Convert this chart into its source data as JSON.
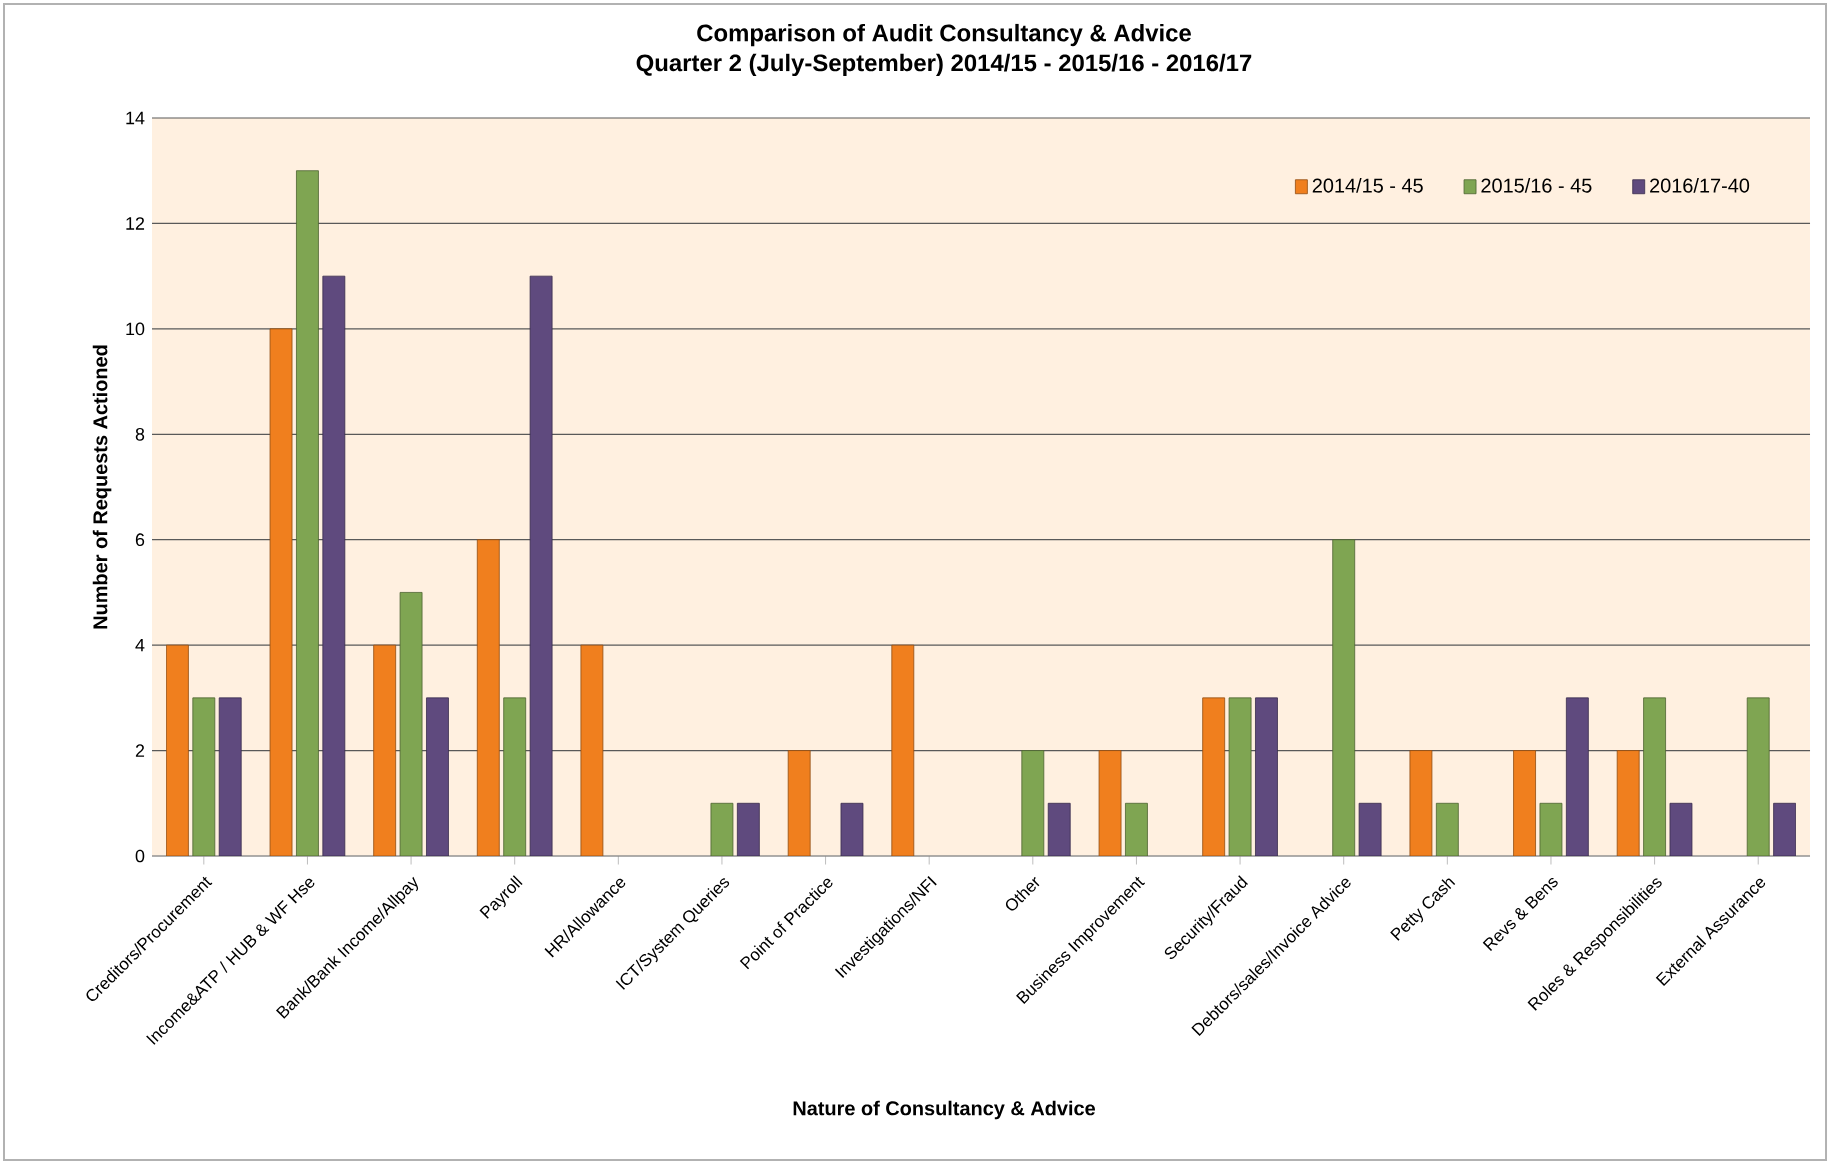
{
  "chart_data": {
    "type": "bar",
    "title": "Comparison of Audit Consultancy & Advice",
    "subtitle": "Quarter 2 (July-September) 2014/15 - 2015/16 - 2016/17",
    "xlabel": "Nature of Consultancy & Advice",
    "ylabel": "Number of Requests Actioned",
    "categories": [
      "Creditors/Procurement",
      "Income&ATP / HUB & WF Hse",
      "Bank/Bank Income/Allpay",
      "Payroll",
      "HR/Allowance",
      "ICT/System Queries",
      "Point of Practice",
      "Investigations/NFI",
      "Other",
      "Business Improvement",
      "Security/Fraud",
      "Debtors/sales/Invoice Advice",
      "Petty Cash",
      "Revs & Bens",
      "Roles & Responsibilities",
      "External Assurance"
    ],
    "series": [
      {
        "name": "2014/15 - 45",
        "color": "#f07f1e",
        "values": [
          4,
          10,
          4,
          6,
          4,
          null,
          2,
          4,
          null,
          2,
          3,
          null,
          2,
          2,
          2,
          null
        ]
      },
      {
        "name": "2015/16 - 45",
        "color": "#7fa552",
        "values": [
          3,
          13,
          5,
          3,
          null,
          1,
          null,
          null,
          2,
          1,
          3,
          6,
          1,
          1,
          3,
          3
        ]
      },
      {
        "name": "2016/17-40",
        "color": "#5f4a7e",
        "values": [
          3,
          11,
          3,
          11,
          null,
          1,
          1,
          null,
          1,
          null,
          3,
          1,
          null,
          3,
          1,
          1
        ]
      }
    ],
    "ylim": [
      0,
      14
    ],
    "yticks": [
      0,
      2,
      4,
      6,
      8,
      10,
      12,
      14
    ],
    "grid": "y",
    "legend": "top right"
  }
}
